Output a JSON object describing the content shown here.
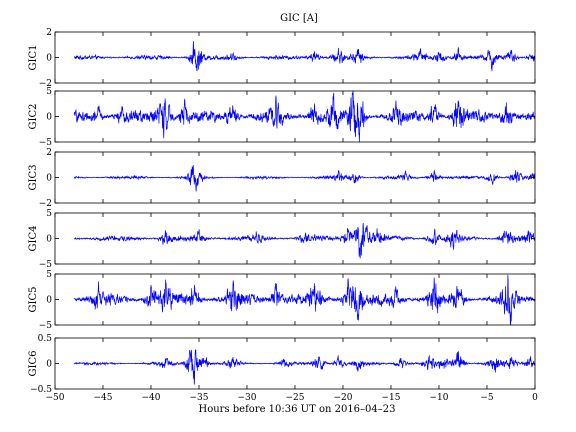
{
  "chart_data": {
    "type": "line",
    "title": "GIC [A]",
    "xlabel": "Hours before  10:36 UT on 2016–04–23",
    "xlim": [
      -50,
      0
    ],
    "x_ticks": [
      -50,
      -45,
      -40,
      -35,
      -30,
      -25,
      -20,
      -15,
      -10,
      -5,
      0
    ],
    "x_tick_labels": [
      "−50",
      "−45",
      "−40",
      "−35",
      "−30",
      "−25",
      "−20",
      "−15",
      "−10",
      "−5",
      "0"
    ],
    "data_x_range": [
      -48,
      0
    ],
    "line_color": "#0000ff",
    "grid": false,
    "panels": [
      {
        "name": "GIC1",
        "ylabel": "GIC1",
        "ylim": [
          -2,
          2
        ],
        "y_ticks": [
          -2,
          0,
          2
        ],
        "y_tick_labels": [
          "−2",
          "0",
          "2"
        ],
        "baseline_amplitude": 0.12,
        "events": [
          {
            "x": -35.5,
            "amplitude": 0.55
          },
          {
            "x": -35.2,
            "amplitude": -0.8
          },
          {
            "x": -31.5,
            "amplitude": 0.3
          },
          {
            "x": -23.0,
            "amplitude": 0.45
          },
          {
            "x": -20.5,
            "amplitude": 0.5
          },
          {
            "x": -18.5,
            "amplitude": 0.5
          },
          {
            "x": -12.0,
            "amplitude": 0.4
          },
          {
            "x": -10.0,
            "amplitude": 0.6
          },
          {
            "x": -8.0,
            "amplitude": 0.5
          },
          {
            "x": -4.5,
            "amplitude": -0.6
          },
          {
            "x": -2.5,
            "amplitude": 0.5
          },
          {
            "x": 0.0,
            "amplitude": 0.4
          }
        ]
      },
      {
        "name": "GIC2",
        "ylabel": "GIC2",
        "ylim": [
          -5,
          5
        ],
        "y_ticks": [
          -5,
          0,
          5
        ],
        "y_tick_labels": [
          "−5",
          "0",
          "5"
        ],
        "baseline_amplitude": 0.8,
        "events": [
          {
            "x": -45.5,
            "amplitude": 1.6
          },
          {
            "x": -43.0,
            "amplitude": 1.2
          },
          {
            "x": -39.0,
            "amplitude": 2.0
          },
          {
            "x": -38.4,
            "amplitude": -2.6
          },
          {
            "x": -36.5,
            "amplitude": 1.8
          },
          {
            "x": -31.5,
            "amplitude": 2.5
          },
          {
            "x": -27.0,
            "amplitude": 1.8
          },
          {
            "x": -23.0,
            "amplitude": 2.3
          },
          {
            "x": -21.0,
            "amplitude": 2.5
          },
          {
            "x": -19.0,
            "amplitude": 3.0
          },
          {
            "x": -18.3,
            "amplitude": -3.6
          },
          {
            "x": -14.5,
            "amplitude": 1.8
          },
          {
            "x": -10.5,
            "amplitude": 2.2
          },
          {
            "x": -8.0,
            "amplitude": 2.4
          },
          {
            "x": -3.0,
            "amplitude": 2.6
          }
        ]
      },
      {
        "name": "GIC3",
        "ylabel": "GIC3",
        "ylim": [
          -2,
          2
        ],
        "y_ticks": [
          -2,
          0,
          2
        ],
        "y_tick_labels": [
          "−2",
          "0",
          "2"
        ],
        "baseline_amplitude": 0.08,
        "events": [
          {
            "x": -35.6,
            "amplitude": 0.4
          },
          {
            "x": -35.3,
            "amplitude": -0.7
          },
          {
            "x": -20.5,
            "amplitude": 0.4
          },
          {
            "x": -18.8,
            "amplitude": -0.4
          },
          {
            "x": -13.5,
            "amplitude": 0.3
          },
          {
            "x": -10.5,
            "amplitude": 0.5
          },
          {
            "x": -4.5,
            "amplitude": -0.5
          },
          {
            "x": -2.0,
            "amplitude": 0.5
          },
          {
            "x": 0.0,
            "amplitude": 0.3
          }
        ]
      },
      {
        "name": "GIC4",
        "ylabel": "GIC4",
        "ylim": [
          -5,
          5
        ],
        "y_ticks": [
          -5,
          0,
          5
        ],
        "y_tick_labels": [
          "−5",
          "0",
          "5"
        ],
        "baseline_amplitude": 0.4,
        "events": [
          {
            "x": -38.5,
            "amplitude": 1.2
          },
          {
            "x": -35.0,
            "amplitude": 1.0
          },
          {
            "x": -29.0,
            "amplitude": 0.9
          },
          {
            "x": -24.0,
            "amplitude": 1.0
          },
          {
            "x": -19.5,
            "amplitude": 1.6
          },
          {
            "x": -18.3,
            "amplitude": -3.8
          },
          {
            "x": -17.5,
            "amplitude": 1.4
          },
          {
            "x": -16.5,
            "amplitude": 1.0
          },
          {
            "x": -10.5,
            "amplitude": 1.2
          },
          {
            "x": -8.5,
            "amplitude": -1.8
          },
          {
            "x": -3.0,
            "amplitude": 1.5
          },
          {
            "x": -0.5,
            "amplitude": 1.0
          }
        ]
      },
      {
        "name": "GIC5",
        "ylabel": "GIC5",
        "ylim": [
          -5,
          5
        ],
        "y_ticks": [
          -5,
          0,
          5
        ],
        "y_tick_labels": [
          "−5",
          "0",
          "5"
        ],
        "baseline_amplitude": 0.8,
        "events": [
          {
            "x": -45.5,
            "amplitude": 1.6
          },
          {
            "x": -40.0,
            "amplitude": 2.0
          },
          {
            "x": -38.5,
            "amplitude": 2.2
          },
          {
            "x": -35.5,
            "amplitude": 1.8
          },
          {
            "x": -31.5,
            "amplitude": 2.0
          },
          {
            "x": -27.0,
            "amplitude": 2.2
          },
          {
            "x": -23.0,
            "amplitude": 2.2
          },
          {
            "x": -19.5,
            "amplitude": 2.6
          },
          {
            "x": -18.5,
            "amplitude": -3.5
          },
          {
            "x": -14.5,
            "amplitude": 1.8
          },
          {
            "x": -10.5,
            "amplitude": 2.4
          },
          {
            "x": -8.0,
            "amplitude": 2.2
          },
          {
            "x": -2.8,
            "amplitude": 2.6
          },
          {
            "x": -2.5,
            "amplitude": -1.8
          }
        ]
      },
      {
        "name": "GIC6",
        "ylabel": "GIC6",
        "ylim": [
          -0.5,
          0.5
        ],
        "y_ticks": [
          -0.5,
          0,
          0.5
        ],
        "y_tick_labels": [
          "−0.5",
          "0",
          "0.5"
        ],
        "baseline_amplitude": 0.02,
        "events": [
          {
            "x": -38.5,
            "amplitude": 0.08
          },
          {
            "x": -36.0,
            "amplitude": 0.12
          },
          {
            "x": -35.5,
            "amplitude": -0.3
          },
          {
            "x": -34.5,
            "amplitude": 0.12
          },
          {
            "x": -31.5,
            "amplitude": 0.1
          },
          {
            "x": -26.0,
            "amplitude": -0.08
          },
          {
            "x": -22.5,
            "amplitude": 0.15
          },
          {
            "x": -20.5,
            "amplitude": 0.12
          },
          {
            "x": -18.5,
            "amplitude": -0.12
          },
          {
            "x": -14.0,
            "amplitude": 0.1
          },
          {
            "x": -11.0,
            "amplitude": 0.12
          },
          {
            "x": -9.5,
            "amplitude": -0.12
          },
          {
            "x": -8.0,
            "amplitude": 0.2
          },
          {
            "x": -4.2,
            "amplitude": -0.15
          },
          {
            "x": -2.5,
            "amplitude": 0.12
          },
          {
            "x": -0.5,
            "amplitude": 0.1
          }
        ]
      }
    ]
  }
}
